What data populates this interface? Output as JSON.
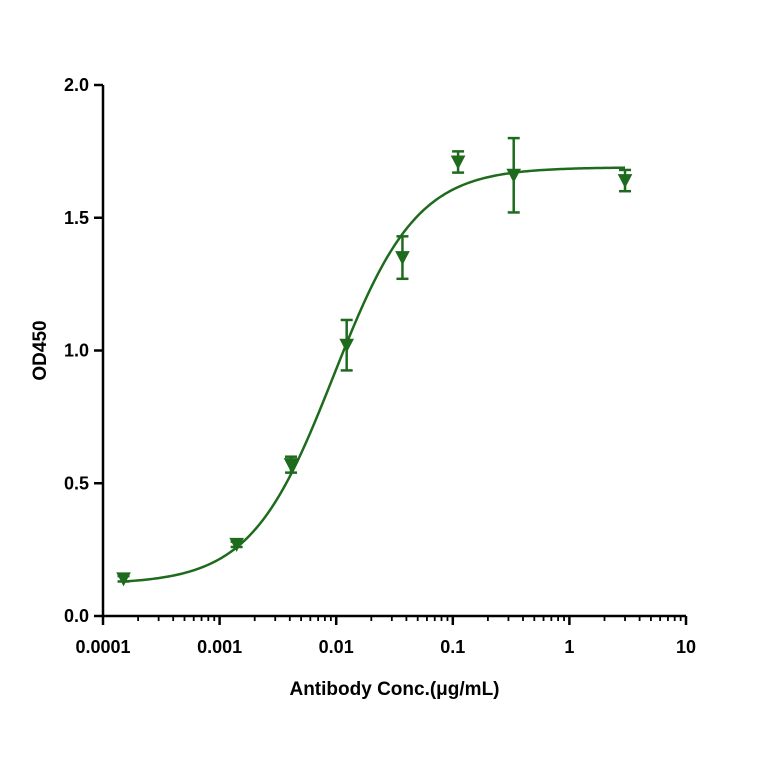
{
  "chart_data": {
    "type": "scatter",
    "title": "",
    "xlabel": "Antibody Conc.(μg/mL)",
    "ylabel": "OD450",
    "x_scale": "log",
    "xlim": [
      0.0001,
      10
    ],
    "ylim": [
      0.0,
      2.0
    ],
    "x_ticks": [
      0.0001,
      0.001,
      0.01,
      0.1,
      1,
      10
    ],
    "x_tick_labels": [
      "0.0001",
      "0.001",
      "0.01",
      "0.1",
      "1",
      "10"
    ],
    "y_ticks": [
      0.0,
      0.5,
      1.0,
      1.5,
      2.0
    ],
    "y_tick_labels": [
      "0.0",
      "0.5",
      "1.0",
      "1.5",
      "2.0"
    ],
    "grid": false,
    "legend": "none",
    "color": "#1e6b1e",
    "marker": "triangle-down",
    "series": [
      {
        "x": [
          0.00015,
          0.0014,
          0.0041,
          0.0123,
          0.037,
          0.111,
          0.333,
          3.0
        ],
        "y": [
          0.14,
          0.27,
          0.57,
          1.02,
          1.35,
          1.71,
          1.66,
          1.64
        ],
        "error": [
          0.01,
          0.01,
          0.03,
          0.095,
          0.08,
          0.04,
          0.14,
          0.04
        ]
      }
    ],
    "fit": {
      "model": "4PL",
      "bottom": 0.12,
      "top": 1.69,
      "ec50": 0.0095,
      "hill": 1.22
    }
  }
}
